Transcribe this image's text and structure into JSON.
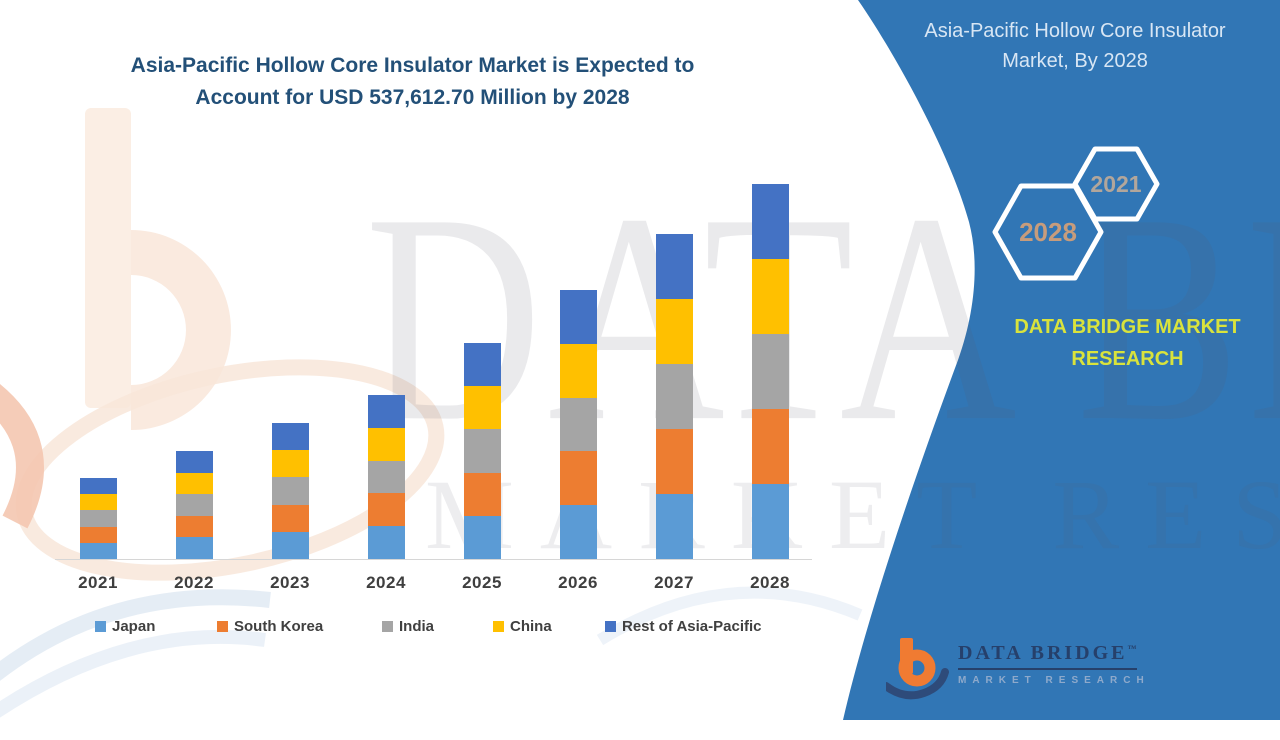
{
  "title": {
    "line1": "Asia-Pacific Hollow Core Insulator Market is Expected to",
    "line2": "Account for USD 537,612.70 Million by 2028"
  },
  "panel": {
    "heading_line1": "Asia-Pacific Hollow Core Insulator",
    "heading_line2": "Market, By 2028",
    "hex_small": "2021",
    "hex_large": "2028",
    "brand_line1": "DATA BRIDGE MARKET",
    "brand_line2": "RESEARCH",
    "logo_name": "DATA BRIDGE",
    "logo_tm": "™",
    "logo_sub": "MARKET RESEARCH",
    "panel_color": "#3176B5",
    "brand_yellow": "#D9E33C",
    "hex_stroke_color": "#FFFFFF"
  },
  "watermark": {
    "line1": "DATA BRIDGE",
    "line2": "MARKET RESEARCH"
  },
  "chart_data": {
    "type": "bar",
    "stacked": true,
    "title": "Asia-Pacific Hollow Core Insulator Market is Expected to Account for USD 537,612.70 Million by 2028",
    "unit": "USD Million",
    "categories": [
      "2021",
      "2022",
      "2023",
      "2024",
      "2025",
      "2026",
      "2027",
      "2028"
    ],
    "series": [
      {
        "name": "Japan",
        "color": "#5B9BD5",
        "values": [
          23220,
          30970,
          39000,
          47020,
          61930,
          77130,
          93180,
          107522.5
        ]
      },
      {
        "name": "South Korea",
        "color": "#ED7D31",
        "values": [
          23220,
          30970,
          39000,
          47020,
          61930,
          77130,
          93180,
          107522.5
        ]
      },
      {
        "name": "India",
        "color": "#A5A5A5",
        "values": [
          23220,
          30970,
          39000,
          47020,
          61930,
          77130,
          93180,
          107522.5
        ]
      },
      {
        "name": "China",
        "color": "#FFC000",
        "values": [
          23220,
          30970,
          39000,
          47020,
          61930,
          77130,
          93180,
          107522.5
        ]
      },
      {
        "name": "Rest of Asia-Pacific",
        "color": "#4472C4",
        "values": [
          23220,
          30970,
          39000,
          47020,
          61930,
          77130,
          93180,
          107522.7
        ]
      }
    ],
    "totals": [
      116100,
      154850,
      195000,
      235100,
      309650,
      385650,
      465900,
      537612.7
    ],
    "labeled_value": "2028 total labeled in title as USD 537,612.70 Million",
    "values_estimated_from_bar_heights": true,
    "legend_position": "bottom",
    "gridlines": false,
    "y_axis_visible": false,
    "baseline_color": "#D6D6D6",
    "x_label_color": "#3F3F3F"
  }
}
